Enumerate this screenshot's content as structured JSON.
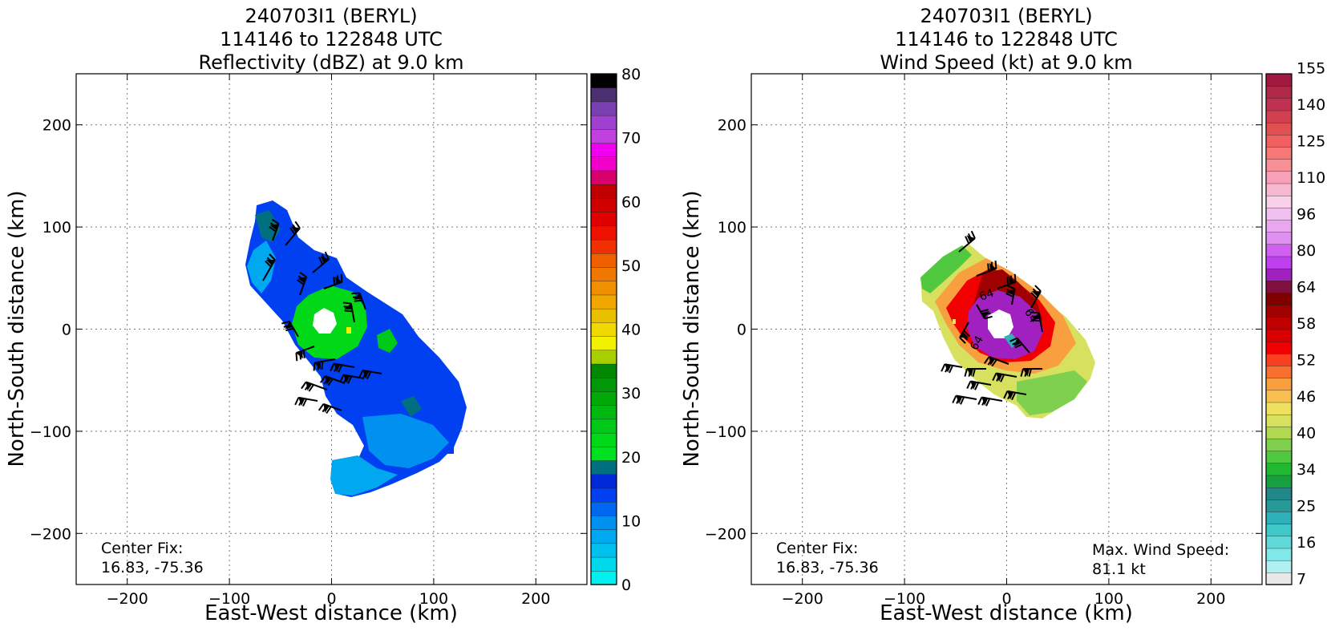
{
  "chart_data": [
    {
      "type": "heatmap",
      "title_lines": [
        "240703I1 (BERYL)",
        "114146 to 122848 UTC",
        "Reflectivity (dBZ) at 9.0 km"
      ],
      "xlabel": "East-West distance (km)",
      "ylabel": "North-South distance (km)",
      "xlim": [
        -250,
        250
      ],
      "ylim": [
        -250,
        250
      ],
      "xticks": [
        -200,
        -100,
        0,
        100,
        200
      ],
      "yticks": [
        -200,
        -100,
        0,
        100,
        200
      ],
      "xtick_labels": [
        "−200",
        "−100",
        "0",
        "100",
        "200"
      ],
      "ytick_labels": [
        "−200",
        "−100",
        "0",
        "100",
        "200"
      ],
      "grid": true,
      "colorbar": {
        "min": 0,
        "max": 80,
        "ticks": [
          0,
          10,
          20,
          30,
          40,
          50,
          60,
          70,
          80
        ],
        "tick_labels": [
          "0",
          "10",
          "20",
          "30",
          "40",
          "50",
          "60",
          "70",
          "80"
        ],
        "colors": [
          "#00f0f0",
          "#00d8ec",
          "#00c0ee",
          "#00a8f0",
          "#0090f0",
          "#0068f0",
          "#0040f0",
          "#0028d8",
          "#007080",
          "#00e020",
          "#00d818",
          "#00c818",
          "#00b810",
          "#00a808",
          "#009808",
          "#008800",
          "#a8d000",
          "#f0f000",
          "#f0d800",
          "#e8c000",
          "#f0a800",
          "#f09000",
          "#f07800",
          "#f06000",
          "#f03000",
          "#f01000",
          "#e00000",
          "#d00000",
          "#c00000",
          "#d8006c",
          "#f000c8",
          "#f000f0",
          "#c040e0",
          "#a040d0",
          "#7840b0",
          "#4a3070",
          "#000000"
        ]
      },
      "annotation_lines": [
        "Center Fix:",
        "16.83, -75.36"
      ]
    },
    {
      "type": "heatmap",
      "title_lines": [
        "240703I1 (BERYL)",
        "114146 to 122848 UTC",
        "Wind Speed (kt) at 9.0 km"
      ],
      "xlabel": "East-West distance (km)",
      "ylabel": "North-South distance (km)",
      "xlim": [
        -250,
        250
      ],
      "ylim": [
        -250,
        250
      ],
      "xticks": [
        -200,
        -100,
        0,
        100,
        200
      ],
      "yticks": [
        -200,
        -100,
        0,
        100,
        200
      ],
      "xtick_labels": [
        "−200",
        "−100",
        "0",
        "100",
        "200"
      ],
      "ytick_labels": [
        "−200",
        "−100",
        "0",
        "100",
        "200"
      ],
      "grid": true,
      "colorbar": {
        "tick_labels": [
          "7",
          "16",
          "25",
          "34",
          "40",
          "46",
          "52",
          "58",
          "64",
          "80",
          "96",
          "110",
          "125",
          "140",
          "155"
        ],
        "colors": [
          "#e8e8e8",
          "#b0f0f0",
          "#80e8e8",
          "#60d8d8",
          "#40c8c8",
          "#30b0b8",
          "#289898",
          "#208888",
          "#18a040",
          "#20b830",
          "#50c840",
          "#80d050",
          "#b0d850",
          "#d8e060",
          "#f0e060",
          "#f8c050",
          "#f8a040",
          "#f87030",
          "#f84020",
          "#f00000",
          "#d80000",
          "#c00000",
          "#a00000",
          "#800000",
          "#801040",
          "#a020c0",
          "#c040f0",
          "#d060f0",
          "#e090f0",
          "#e8a8f0",
          "#f0c0f0",
          "#f8d0e8",
          "#f8b8d0",
          "#f8a0b8",
          "#f89098",
          "#f87878",
          "#f06060",
          "#e05050",
          "#d04050",
          "#c03050",
          "#b02848",
          "#a01840"
        ]
      },
      "contour_labels": [
        "64",
        "64",
        "64"
      ],
      "annotation_lines": [
        "Center Fix:",
        "16.83, -75.36"
      ],
      "max_wind_lines": [
        "Max. Wind Speed:",
        "81.1 kt"
      ]
    }
  ]
}
